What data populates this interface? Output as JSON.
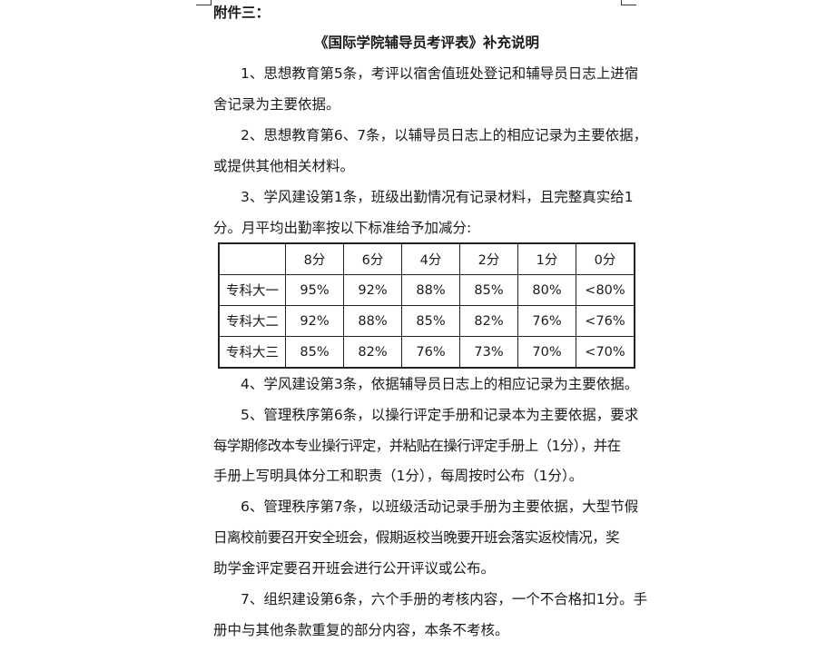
{
  "heading": "附件三：",
  "title": "《国际学院辅导员考评表》补充说明",
  "lines": [
    "1、思想教育第5条，考评以宿舍值班处登记和辅导员日志上进宿",
    "舍记录为主要依据。",
    "2、思想教育第6、7条，以辅导员日志上的相应记录为主要依据，",
    "或提供其他相关材料。",
    "3、学风建设第1条，班级出勤情况有记录材料，且完整真实给1",
    "分。月平均出勤率按以下标准给予加减分:",
    "4、学风建设第3条，依据辅导员日志上的相应记录为主要依据。",
    "5、管理秩序第6条，以操行评定手册和记录本为主要依据，要求",
    "每学期修改本专业操行评定，并粘贴在操行评定手册上（1分），并在",
    "手册上写明具体分工和职责（1分），每周按时公布（1分）。",
    "6、管理秩序第7条，以班级活动记录手册为主要依据，大型节假",
    "日离校前要召开安全班会，假期返校当晚要开班会落实返校情况，奖",
    "助学金评定要召开班会进行公开评议或公布。",
    "7、组织建设第6条，六个手册的考核内容，一个不合格扣1分。手",
    "册中与其他条款重复的部分内容，本条不考核。"
  ],
  "table": {
    "header": [
      "",
      "8分",
      "6分",
      "4分",
      "2分",
      "1分",
      "0分"
    ],
    "rows": [
      [
        "专科大一",
        "95%",
        "92%",
        "88%",
        "85%",
        "80%",
        "<80%"
      ],
      [
        "专科大二",
        "92%",
        "88%",
        "85%",
        "82%",
        "76%",
        "<76%"
      ],
      [
        "专科大三",
        "85%",
        "82%",
        "76%",
        "73%",
        "70%",
        "<70%"
      ]
    ]
  }
}
